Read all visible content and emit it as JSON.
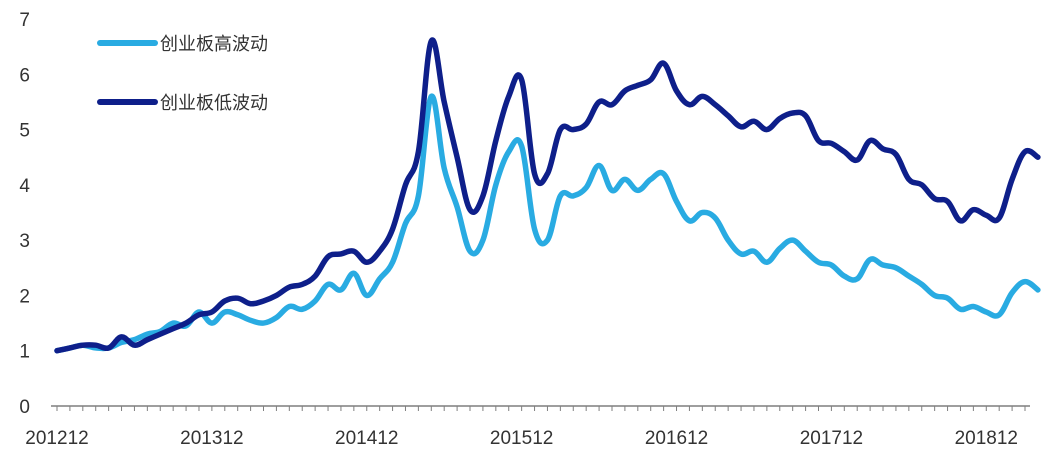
{
  "chart_data": {
    "type": "line",
    "title": "",
    "xlabel": "",
    "ylabel": "",
    "ylim": [
      0,
      7
    ],
    "y_ticks": [
      0,
      1,
      2,
      3,
      4,
      5,
      6,
      7
    ],
    "x_tick_labels": [
      "201212",
      "201312",
      "201412",
      "201512",
      "201612",
      "201712",
      "201812"
    ],
    "x_tick_label_positions": [
      0,
      12,
      24,
      36,
      48,
      60,
      72
    ],
    "x_months": 75,
    "grid": false,
    "legend_position": "top-left",
    "series": [
      {
        "name": "创业板高波动",
        "color": "#29ABE2",
        "values": [
          1.0,
          1.05,
          1.1,
          1.05,
          1.05,
          1.15,
          1.2,
          1.3,
          1.35,
          1.5,
          1.45,
          1.7,
          1.5,
          1.7,
          1.65,
          1.55,
          1.5,
          1.6,
          1.8,
          1.75,
          1.9,
          2.2,
          2.1,
          2.4,
          2.0,
          2.3,
          2.6,
          3.3,
          3.8,
          5.6,
          4.3,
          3.6,
          2.8,
          3.0,
          4.0,
          4.6,
          4.7,
          3.2,
          3.0,
          3.8,
          3.8,
          3.95,
          4.35,
          3.9,
          4.1,
          3.9,
          4.1,
          4.2,
          3.7,
          3.35,
          3.5,
          3.4,
          3.0,
          2.75,
          2.8,
          2.6,
          2.85,
          3.0,
          2.8,
          2.6,
          2.55,
          2.35,
          2.3,
          2.65,
          2.55,
          2.5,
          2.35,
          2.2,
          2.0,
          1.95,
          1.75,
          1.8,
          1.7,
          1.65,
          2.05,
          2.25,
          2.1
        ]
      },
      {
        "name": "创业板低波动",
        "color": "#0E1F8A",
        "values": [
          1.0,
          1.05,
          1.1,
          1.1,
          1.05,
          1.25,
          1.1,
          1.2,
          1.3,
          1.4,
          1.5,
          1.65,
          1.7,
          1.9,
          1.95,
          1.85,
          1.9,
          2.0,
          2.15,
          2.2,
          2.35,
          2.7,
          2.75,
          2.8,
          2.6,
          2.8,
          3.2,
          4.0,
          4.6,
          6.6,
          5.5,
          4.5,
          3.55,
          3.8,
          4.8,
          5.6,
          5.9,
          4.2,
          4.2,
          5.0,
          5.0,
          5.1,
          5.5,
          5.45,
          5.7,
          5.8,
          5.9,
          6.2,
          5.7,
          5.45,
          5.6,
          5.45,
          5.25,
          5.05,
          5.15,
          5.0,
          5.2,
          5.3,
          5.25,
          4.8,
          4.75,
          4.6,
          4.45,
          4.8,
          4.65,
          4.55,
          4.1,
          4.0,
          3.75,
          3.7,
          3.35,
          3.55,
          3.45,
          3.4,
          4.1,
          4.6,
          4.5
        ]
      }
    ]
  }
}
